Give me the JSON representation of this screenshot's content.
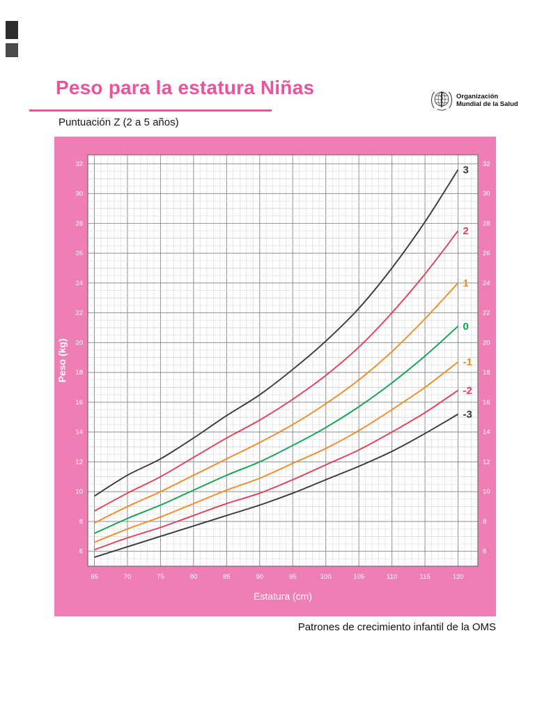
{
  "page": {
    "title": "Peso para la estatura Niñas",
    "subtitle": "Puntuación Z  (2 a 5 años)",
    "footer": "Patrones de crecimiento infantil de la OMS"
  },
  "logo": {
    "line1": "Organización",
    "line2": "Mundial de la Salud",
    "icon": "who-emblem-icon"
  },
  "colors": {
    "title_pink": "#e9549c",
    "panel_pink": "#ee7eb4",
    "curve_black": "#39383a",
    "curve_red": "#e23e57",
    "curve_orange": "#f08b22",
    "curve_green": "#10a251",
    "grid_major": "#8f8f8f",
    "grid_minor": "#d8d8d8",
    "tick_text": "#ffffff"
  },
  "chart_data": {
    "type": "line",
    "title": "Peso para la estatura Niñas — Puntuación Z (2 a 5 años)",
    "xlabel": "Estatura (cm)",
    "ylabel": "Peso (kg)",
    "xlim": [
      64,
      123
    ],
    "ylim": [
      5,
      32.6
    ],
    "x_ticks": [
      65,
      70,
      75,
      80,
      85,
      90,
      95,
      100,
      105,
      110,
      115,
      120
    ],
    "y_ticks": [
      6,
      8,
      10,
      12,
      14,
      16,
      18,
      20,
      22,
      24,
      26,
      28,
      30,
      32
    ],
    "grid": {
      "x_minor_step": 1,
      "x_major_step": 5,
      "y_minor_step": 0.5,
      "y_major_step": 2
    },
    "legend_position": "curve-ends-right",
    "x": [
      65,
      70,
      75,
      80,
      85,
      90,
      95,
      100,
      105,
      110,
      115,
      120
    ],
    "series": [
      {
        "name": "3",
        "color": "#39383a",
        "values": [
          9.7,
          11.1,
          12.2,
          13.6,
          15.1,
          16.5,
          18.2,
          20.1,
          22.3,
          25.0,
          28.1,
          31.6
        ]
      },
      {
        "name": "2",
        "color": "#e23e57",
        "values": [
          8.7,
          9.9,
          11.0,
          12.3,
          13.6,
          14.8,
          16.2,
          17.8,
          19.7,
          22.0,
          24.6,
          27.5
        ]
      },
      {
        "name": "1",
        "color": "#f08b22",
        "values": [
          7.9,
          9.0,
          10.0,
          11.1,
          12.2,
          13.3,
          14.5,
          15.9,
          17.5,
          19.4,
          21.6,
          24.0
        ]
      },
      {
        "name": "0",
        "color": "#10a251",
        "values": [
          7.2,
          8.2,
          9.1,
          10.1,
          11.1,
          12.0,
          13.1,
          14.3,
          15.7,
          17.3,
          19.1,
          21.1
        ]
      },
      {
        "name": "-1",
        "color": "#f08b22",
        "values": [
          6.6,
          7.5,
          8.3,
          9.2,
          10.1,
          10.9,
          11.9,
          12.9,
          14.1,
          15.5,
          17.0,
          18.7
        ]
      },
      {
        "name": "-2",
        "color": "#e23e57",
        "values": [
          6.1,
          6.9,
          7.6,
          8.4,
          9.2,
          9.9,
          10.8,
          11.8,
          12.8,
          14.0,
          15.3,
          16.8
        ]
      },
      {
        "name": "-3",
        "color": "#39383a",
        "values": [
          5.6,
          6.3,
          7.0,
          7.7,
          8.4,
          9.1,
          9.9,
          10.8,
          11.7,
          12.7,
          13.9,
          15.2
        ]
      }
    ]
  }
}
